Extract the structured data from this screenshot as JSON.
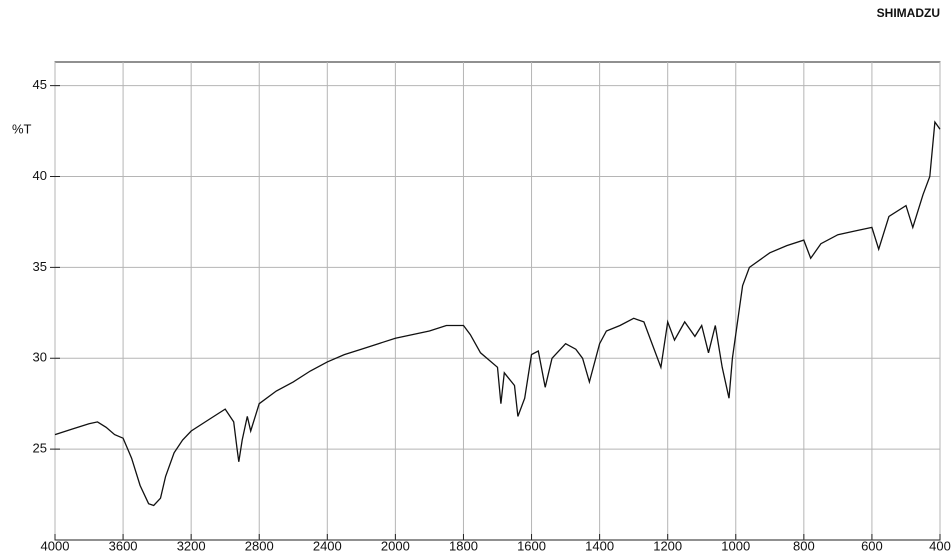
{
  "brand": "SHIMADZU",
  "chart_data": {
    "type": "line",
    "y_label": "%T",
    "xlim": [
      4000,
      400
    ],
    "x_break": 2000,
    "xticks": [
      4000,
      3600,
      3200,
      2800,
      2400,
      2000,
      1800,
      1600,
      1400,
      1200,
      1000,
      800,
      600,
      400
    ],
    "ylim": [
      20,
      46.3
    ],
    "yticks": [
      25,
      30,
      35,
      40,
      45
    ],
    "grid": true,
    "series": [
      {
        "name": null,
        "color": "#111111",
        "x": [
          4000,
          3900,
          3800,
          3750,
          3700,
          3650,
          3600,
          3550,
          3500,
          3450,
          3420,
          3380,
          3350,
          3300,
          3250,
          3200,
          3100,
          3000,
          2950,
          2930,
          2920,
          2900,
          2870,
          2850,
          2800,
          2700,
          2600,
          2500,
          2400,
          2300,
          2200,
          2100,
          2000,
          1900,
          1850,
          1800,
          1780,
          1750,
          1700,
          1690,
          1680,
          1650,
          1640,
          1620,
          1600,
          1580,
          1560,
          1540,
          1500,
          1470,
          1450,
          1430,
          1400,
          1380,
          1340,
          1300,
          1270,
          1250,
          1220,
          1200,
          1180,
          1150,
          1120,
          1100,
          1080,
          1060,
          1040,
          1020,
          1010,
          980,
          960,
          900,
          850,
          800,
          780,
          750,
          700,
          650,
          600,
          580,
          550,
          500,
          480,
          450,
          430,
          415,
          400
        ],
        "values": [
          25.8,
          26.1,
          26.4,
          26.5,
          26.2,
          25.8,
          25.6,
          24.5,
          23.0,
          22.0,
          21.9,
          22.3,
          23.5,
          24.8,
          25.5,
          26.0,
          26.6,
          27.2,
          26.5,
          25.0,
          24.3,
          25.5,
          26.8,
          26.0,
          27.5,
          28.2,
          28.7,
          29.3,
          29.8,
          30.2,
          30.5,
          30.8,
          31.1,
          31.5,
          31.8,
          31.8,
          31.3,
          30.3,
          29.5,
          27.5,
          29.2,
          28.5,
          26.8,
          27.8,
          30.2,
          30.4,
          28.4,
          30.0,
          30.8,
          30.5,
          30.0,
          28.7,
          30.8,
          31.5,
          31.8,
          32.2,
          32.0,
          31.0,
          29.5,
          32.0,
          31.0,
          32.0,
          31.2,
          31.8,
          30.3,
          31.8,
          29.5,
          27.8,
          30.0,
          34.0,
          35.0,
          35.8,
          36.2,
          36.5,
          35.5,
          36.3,
          36.8,
          37.0,
          37.2,
          36.0,
          37.8,
          38.4,
          37.2,
          39.0,
          40.0,
          43.0,
          42.6
        ]
      }
    ]
  }
}
